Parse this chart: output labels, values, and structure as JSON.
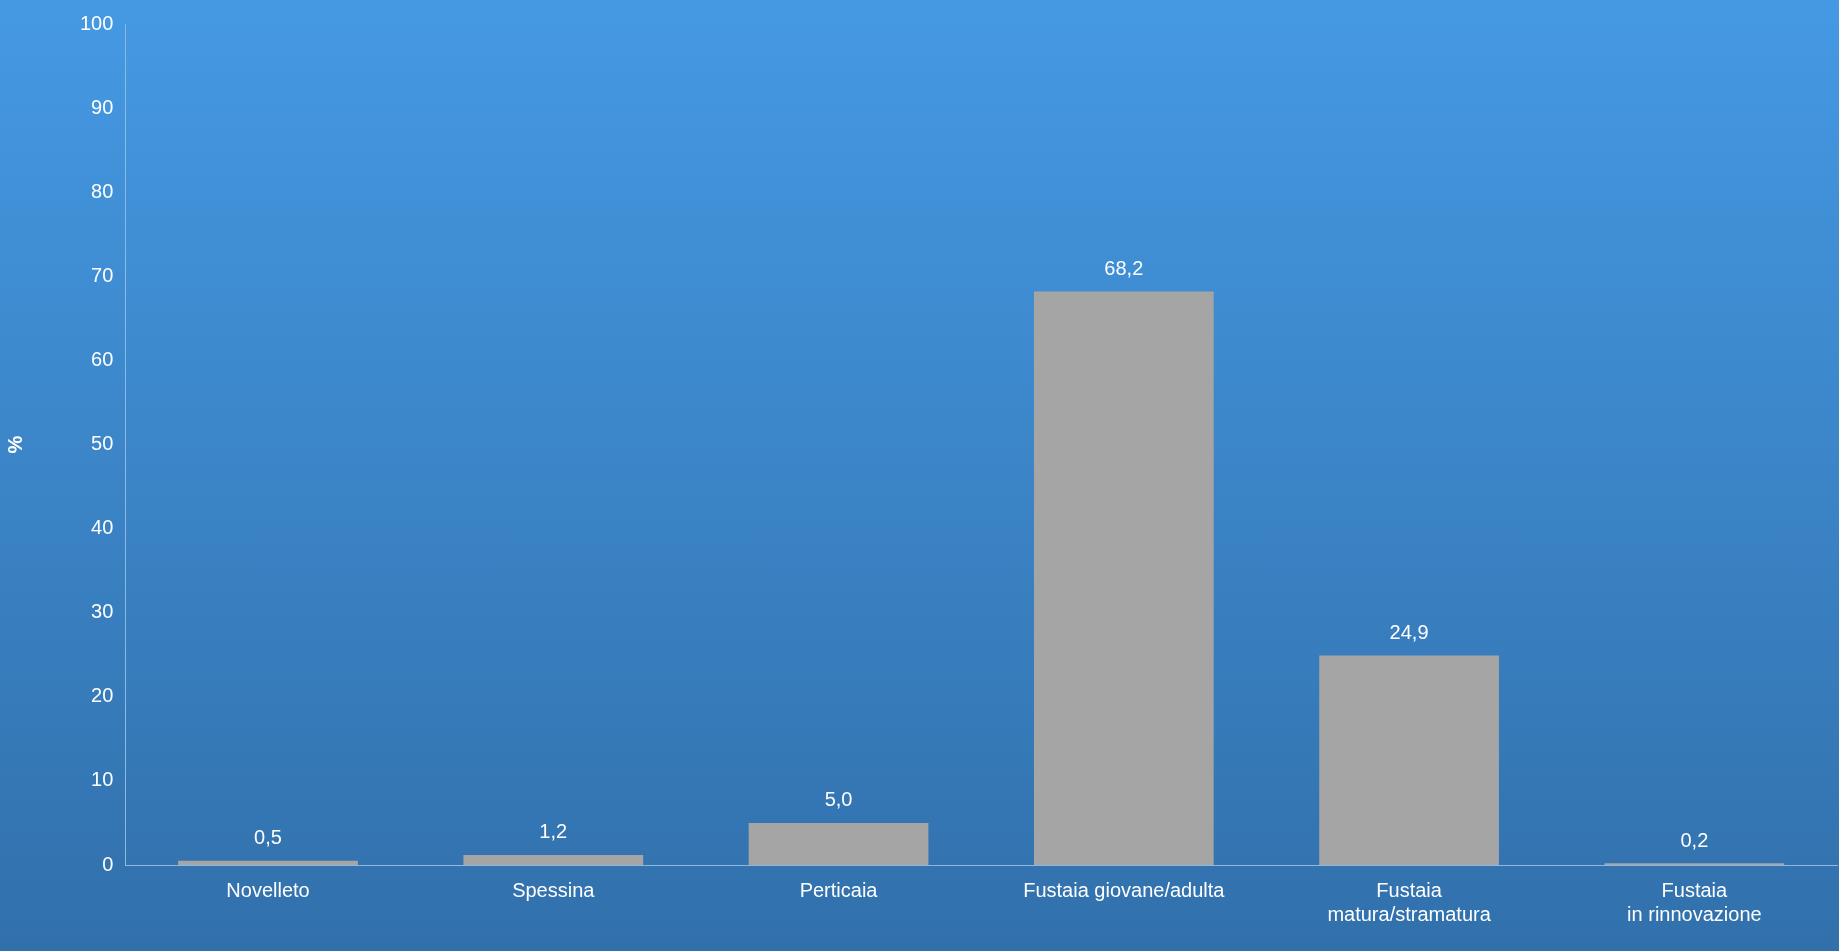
{
  "chart_data": {
    "type": "bar",
    "ylabel": "%",
    "categories": [
      "Novelleto",
      "Spessina",
      "Perticaia",
      "Fustaia giovane/adulta",
      "Fustaia matura/stramatura",
      "Fustaia in rinnovazione"
    ],
    "values": [
      0.5,
      1.2,
      5.0,
      68.2,
      24.9,
      0.2
    ],
    "value_labels": [
      "0,5",
      "1,2",
      "5,0",
      "68,2",
      "24,9",
      "0,2"
    ],
    "color": "#a5a5a5",
    "ylim": [
      0,
      100
    ],
    "yticks": [
      0,
      10,
      20,
      30,
      40,
      50,
      60,
      70,
      80,
      90,
      100
    ],
    "grid": false,
    "legend": false
  }
}
